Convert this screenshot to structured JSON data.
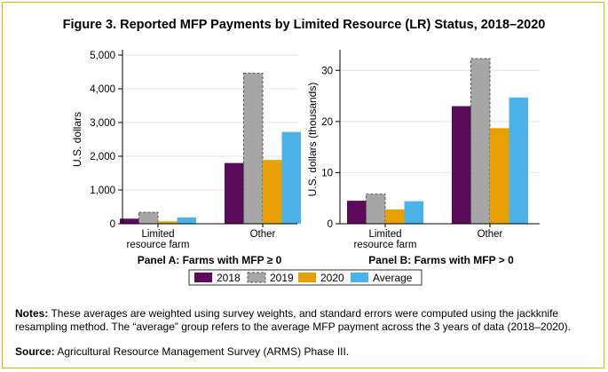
{
  "title": "Figure 3. Reported MFP Payments by Limited Resource (LR) Status, 2018–2020",
  "colors": {
    "2018": "#5c0b5c",
    "2019": "#a6a6a6",
    "2020": "#e8a000",
    "Average": "#4cb3ea",
    "frame": "#e6b400"
  },
  "chart_data": [
    {
      "type": "bar",
      "panel_label": "Panel A: Farms with MFP ≥ 0",
      "ylabel": "U.S. dollars",
      "ylim": [
        0,
        5000
      ],
      "yticks": [
        0,
        1000,
        2000,
        3000,
        4000,
        5000
      ],
      "ytick_labels": [
        "0",
        "1,000",
        "2,000",
        "3,000",
        "4,000",
        "5,000"
      ],
      "categories": [
        "Limited resource farm",
        "Other"
      ],
      "category_lines": [
        [
          "Limited",
          "resource farm"
        ],
        [
          "Other"
        ]
      ],
      "series": [
        {
          "name": "2018",
          "values": [
            150,
            1800
          ]
        },
        {
          "name": "2019",
          "values": [
            340,
            4460
          ]
        },
        {
          "name": "2020",
          "values": [
            70,
            1890
          ]
        },
        {
          "name": "Average",
          "values": [
            185,
            2720
          ]
        }
      ]
    },
    {
      "type": "bar",
      "panel_label": "Panel B: Farms with MFP > 0",
      "ylabel": "U.S. dollars (thousands)",
      "ylim": [
        0,
        33
      ],
      "yticks": [
        0,
        10,
        20,
        30
      ],
      "ytick_labels": [
        "0",
        "10",
        "20",
        "30"
      ],
      "categories": [
        "Limited resource farm",
        "Other"
      ],
      "category_lines": [
        [
          "Limited",
          "resource farm"
        ],
        [
          "Other"
        ]
      ],
      "series": [
        {
          "name": "2018",
          "values": [
            4.5,
            23.0
          ]
        },
        {
          "name": "2019",
          "values": [
            5.8,
            32.3
          ]
        },
        {
          "name": "2020",
          "values": [
            2.8,
            18.7
          ]
        },
        {
          "name": "Average",
          "values": [
            4.4,
            24.7
          ]
        }
      ]
    }
  ],
  "legend": [
    "2018",
    "2019",
    "2020",
    "Average"
  ],
  "notes": {
    "label": "Notes:",
    "text": " These averages are weighted using survey weights, and standard errors were computed using the jackknife resampling method. The “average” group refers to the average MFP payment across the 3 years of data (2018–2020)."
  },
  "source": {
    "label": "Source:",
    "text": " Agricultural Resource Management Survey (ARMS) Phase III."
  }
}
